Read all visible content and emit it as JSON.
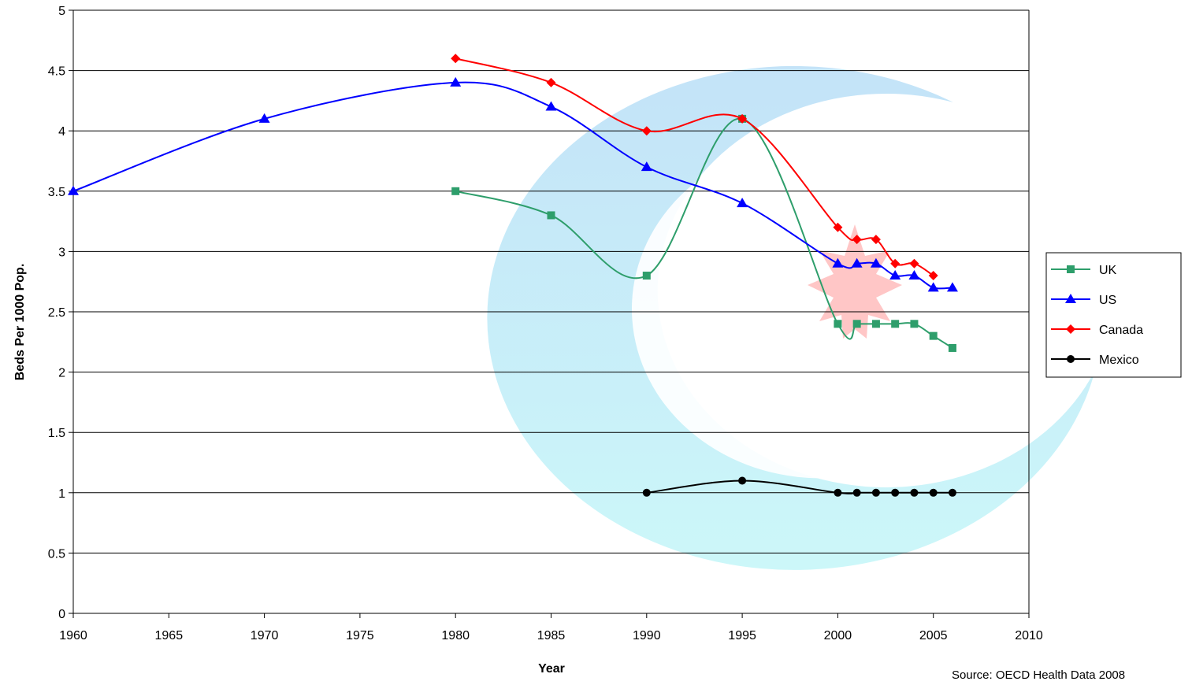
{
  "chart_data": {
    "type": "line",
    "xlabel": "Year",
    "ylabel": "Beds Per 1000 Pop.",
    "xlim": [
      1960,
      2010
    ],
    "ylim": [
      0,
      5
    ],
    "x_ticks": [
      "1960",
      "1965",
      "1970",
      "1975",
      "1980",
      "1985",
      "1990",
      "1995",
      "2000",
      "2005",
      "2010"
    ],
    "y_ticks": [
      "0",
      "0.5",
      "1",
      "1.5",
      "2",
      "2.5",
      "3",
      "3.5",
      "4",
      "4.5",
      "5"
    ],
    "grid": "horizontal",
    "legend_position": "right",
    "smoothed_lines": true,
    "source_note": "Source: OECD Health Data 2008",
    "watermark": "blue-cyan crescent logo with red maple leaf",
    "series": [
      {
        "name": "UK",
        "color": "#2E9E6B",
        "marker": "square",
        "x": [
          1980,
          1985,
          1990,
          1995,
          2000,
          2001,
          2002,
          2003,
          2004,
          2005,
          2006
        ],
        "y": [
          3.5,
          3.3,
          2.8,
          4.1,
          2.4,
          2.4,
          2.4,
          2.4,
          2.4,
          2.3,
          2.2
        ]
      },
      {
        "name": "US",
        "color": "#0000FF",
        "marker": "triangle",
        "x": [
          1960,
          1970,
          1980,
          1985,
          1990,
          1995,
          2000,
          2001,
          2002,
          2003,
          2004,
          2005,
          2006
        ],
        "y": [
          3.5,
          4.1,
          4.4,
          4.2,
          3.7,
          3.4,
          2.9,
          2.9,
          2.9,
          2.8,
          2.8,
          2.7,
          2.7
        ]
      },
      {
        "name": "Canada",
        "color": "#FF0000",
        "marker": "diamond",
        "x": [
          1980,
          1985,
          1990,
          1995,
          2000,
          2001,
          2002,
          2003,
          2004,
          2005
        ],
        "y": [
          4.6,
          4.4,
          4.0,
          4.1,
          3.2,
          3.1,
          3.1,
          2.9,
          2.9,
          2.8
        ]
      },
      {
        "name": "Mexico",
        "color": "#000000",
        "marker": "circle",
        "x": [
          1990,
          1995,
          2000,
          2001,
          2002,
          2003,
          2004,
          2005,
          2006
        ],
        "y": [
          1.0,
          1.1,
          1.0,
          1.0,
          1.0,
          1.0,
          1.0,
          1.0,
          1.0
        ]
      }
    ]
  }
}
